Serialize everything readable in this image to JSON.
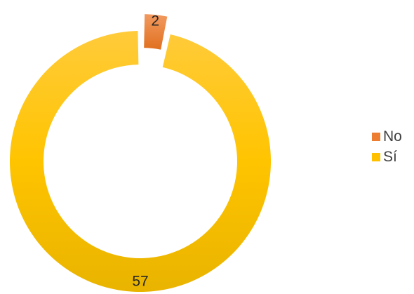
{
  "chart_data": {
    "type": "pie",
    "variant": "doughnut",
    "categories": [
      "No",
      "Sí"
    ],
    "values": [
      2,
      57
    ],
    "data_labels": [
      "2",
      "57"
    ],
    "colors": {
      "No": "#ED7D31",
      "Sí": "#FFC000"
    },
    "exploded": "No",
    "legend_position": "right",
    "title": ""
  },
  "legend": {
    "items": [
      {
        "label": "No",
        "color": "#ED7D31"
      },
      {
        "label": "Sí",
        "color": "#FFC000"
      }
    ]
  }
}
